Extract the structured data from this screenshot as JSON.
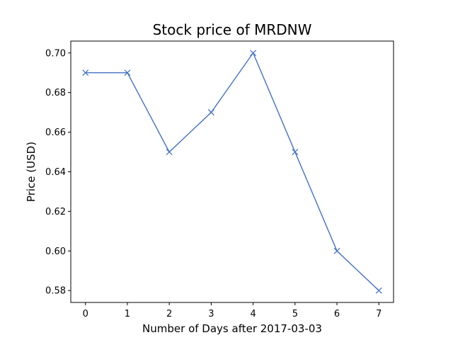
{
  "chart_data": {
    "type": "line",
    "title": "Stock price of MRDNW",
    "xlabel": "Number of Days after 2017-03-03",
    "ylabel": "Price (USD)",
    "x": [
      0,
      1,
      2,
      3,
      4,
      5,
      6,
      7
    ],
    "series": [
      {
        "values": [
          0.69,
          0.69,
          0.65,
          0.67,
          0.7,
          0.65,
          0.6,
          0.58
        ],
        "color": "#4472c4",
        "marker": "x"
      }
    ],
    "xlim": [
      -0.35,
      7.35
    ],
    "ylim": [
      0.574,
      0.706
    ],
    "xticks": [
      0,
      1,
      2,
      3,
      4,
      5,
      6,
      7
    ],
    "yticks": [
      0.58,
      0.6,
      0.62,
      0.64,
      0.66,
      0.68,
      0.7
    ],
    "ytick_labels": [
      "0.58",
      "0.60",
      "0.62",
      "0.64",
      "0.66",
      "0.68",
      "0.70"
    ],
    "grid": false,
    "legend": false
  }
}
